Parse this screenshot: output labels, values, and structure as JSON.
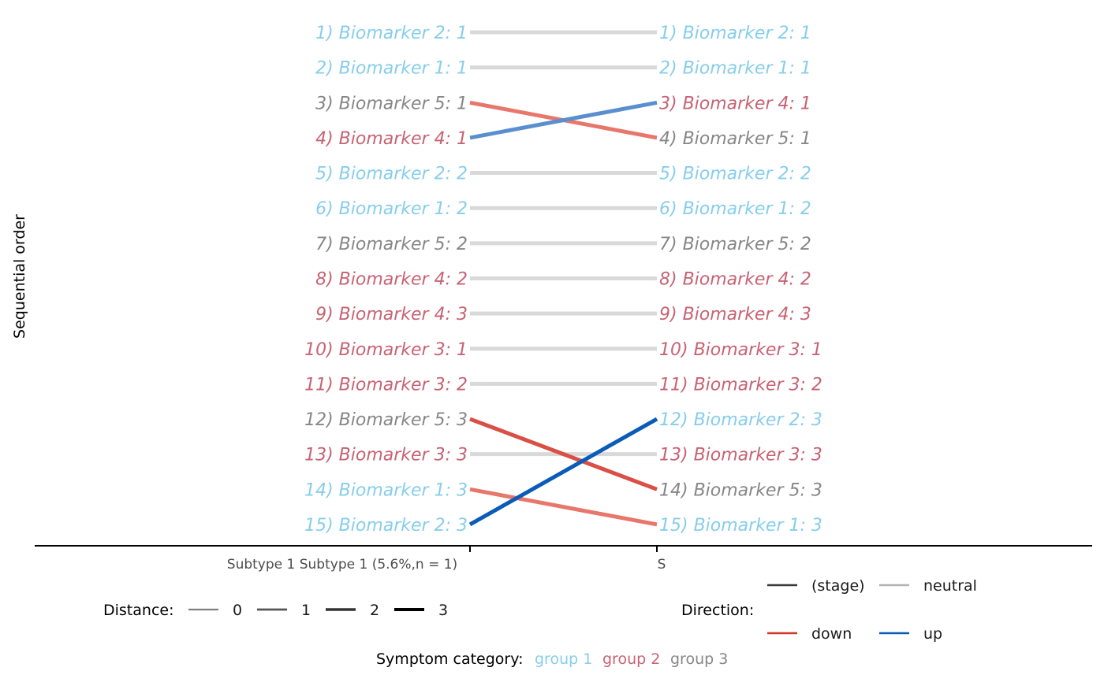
{
  "chart_data": {
    "type": "slope",
    "ylabel": "Sequential order",
    "columns": [
      "Subtype 1 Subtype 1 (5.6%,n = 1)",
      "S"
    ],
    "rows": 15,
    "left": [
      {
        "order": 1,
        "text": "1) Biomarker 2: 1",
        "group": "group 1"
      },
      {
        "order": 2,
        "text": "2) Biomarker 1: 1",
        "group": "group 1"
      },
      {
        "order": 3,
        "text": "3) Biomarker 5: 1",
        "group": "group 3"
      },
      {
        "order": 4,
        "text": "4) Biomarker 4: 1",
        "group": "group 2"
      },
      {
        "order": 5,
        "text": "5) Biomarker 2: 2",
        "group": "group 1"
      },
      {
        "order": 6,
        "text": "6) Biomarker 1: 2",
        "group": "group 1"
      },
      {
        "order": 7,
        "text": "7) Biomarker 5: 2",
        "group": "group 3"
      },
      {
        "order": 8,
        "text": "8) Biomarker 4: 2",
        "group": "group 2"
      },
      {
        "order": 9,
        "text": "9) Biomarker 4: 3",
        "group": "group 2"
      },
      {
        "order": 10,
        "text": "10) Biomarker 3: 1",
        "group": "group 2"
      },
      {
        "order": 11,
        "text": "11) Biomarker 3: 2",
        "group": "group 2"
      },
      {
        "order": 12,
        "text": "12) Biomarker 5: 3",
        "group": "group 3"
      },
      {
        "order": 13,
        "text": "13) Biomarker 3: 3",
        "group": "group 2"
      },
      {
        "order": 14,
        "text": "14) Biomarker 1: 3",
        "group": "group 1"
      },
      {
        "order": 15,
        "text": "15) Biomarker 2: 3",
        "group": "group 1"
      }
    ],
    "right": [
      {
        "order": 1,
        "text": "1) Biomarker 2: 1",
        "group": "group 1"
      },
      {
        "order": 2,
        "text": "2) Biomarker 1: 1",
        "group": "group 1"
      },
      {
        "order": 3,
        "text": "3) Biomarker 4: 1",
        "group": "group 2"
      },
      {
        "order": 4,
        "text": "4) Biomarker 5: 1",
        "group": "group 3"
      },
      {
        "order": 5,
        "text": "5) Biomarker 2: 2",
        "group": "group 1"
      },
      {
        "order": 6,
        "text": "6) Biomarker 1: 2",
        "group": "group 1"
      },
      {
        "order": 7,
        "text": "7) Biomarker 5: 2",
        "group": "group 3"
      },
      {
        "order": 8,
        "text": "8) Biomarker 4: 2",
        "group": "group 2"
      },
      {
        "order": 9,
        "text": "9) Biomarker 4: 3",
        "group": "group 2"
      },
      {
        "order": 10,
        "text": "10) Biomarker 3: 1",
        "group": "group 2"
      },
      {
        "order": 11,
        "text": "11) Biomarker 3: 2",
        "group": "group 2"
      },
      {
        "order": 12,
        "text": "12) Biomarker 2: 3",
        "group": "group 1"
      },
      {
        "order": 13,
        "text": "13) Biomarker 3: 3",
        "group": "group 2"
      },
      {
        "order": 14,
        "text": "14) Biomarker 5: 3",
        "group": "group 3"
      },
      {
        "order": 15,
        "text": "15) Biomarker 1: 3",
        "group": "group 1"
      }
    ],
    "segments": [
      {
        "from": 1,
        "to": 1,
        "distance": 0,
        "direction": "neutral"
      },
      {
        "from": 2,
        "to": 2,
        "distance": 0,
        "direction": "neutral"
      },
      {
        "from": 3,
        "to": 4,
        "distance": 1,
        "direction": "down"
      },
      {
        "from": 4,
        "to": 3,
        "distance": 1,
        "direction": "up"
      },
      {
        "from": 5,
        "to": 5,
        "distance": 0,
        "direction": "neutral"
      },
      {
        "from": 6,
        "to": 6,
        "distance": 0,
        "direction": "neutral"
      },
      {
        "from": 7,
        "to": 7,
        "distance": 0,
        "direction": "neutral"
      },
      {
        "from": 8,
        "to": 8,
        "distance": 0,
        "direction": "neutral"
      },
      {
        "from": 9,
        "to": 9,
        "distance": 0,
        "direction": "neutral"
      },
      {
        "from": 10,
        "to": 10,
        "distance": 0,
        "direction": "neutral"
      },
      {
        "from": 11,
        "to": 11,
        "distance": 0,
        "direction": "neutral"
      },
      {
        "from": 12,
        "to": 14,
        "distance": 2,
        "direction": "down"
      },
      {
        "from": 13,
        "to": 13,
        "distance": 0,
        "direction": "neutral"
      },
      {
        "from": 14,
        "to": 15,
        "distance": 1,
        "direction": "down"
      },
      {
        "from": 15,
        "to": 12,
        "distance": 3,
        "direction": "up"
      }
    ],
    "legend": {
      "distance": {
        "title": "Distance:",
        "entries": [
          "0",
          "1",
          "2",
          "3"
        ]
      },
      "direction": {
        "title": "Direction:",
        "entries": [
          "(stage)",
          "neutral",
          "down",
          "up"
        ]
      },
      "category": {
        "title": "Symptom category:",
        "entries": [
          "group 1",
          "group 2",
          "group 3"
        ]
      }
    },
    "colors": {
      "group 1": "#87ceeb",
      "group 2": "#c86374",
      "group 3": "#878787",
      "neutral": "#d9d9d9",
      "down": "#d0382a",
      "up": "#0a5cb8",
      "stage": "#3a3a3a",
      "neutral_key": "#b3b3b3"
    },
    "grid": false
  }
}
